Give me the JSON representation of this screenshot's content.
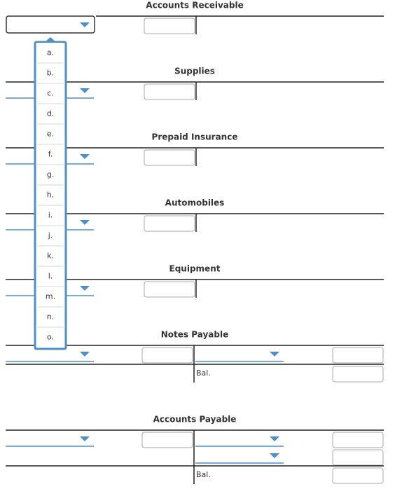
{
  "accounts": [
    {
      "title": "Accounts Receivable"
    },
    {
      "title": "Supplies"
    },
    {
      "title": "Prepaid Insurance"
    },
    {
      "title": "Automobiles"
    },
    {
      "title": "Equipment"
    },
    {
      "title": "Notes Payable",
      "balance_label": "Bal."
    },
    {
      "title": "Accounts Payable",
      "balance_label": "Bal."
    }
  ],
  "dropdown": {
    "options": [
      "a.",
      "b.",
      "c.",
      "d.",
      "e.",
      "f.",
      "g.",
      "h.",
      "i.",
      "j.",
      "k.",
      "l.",
      "m.",
      "n.",
      "o."
    ]
  }
}
